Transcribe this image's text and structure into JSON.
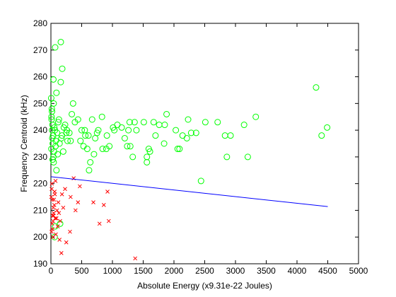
{
  "chart_data": {
    "type": "scatter",
    "xlabel": "Absolute Energy (x9.31e-22 Joules)",
    "ylabel": "Frequency Centroid (kHz)",
    "xlim": [
      0,
      5000
    ],
    "ylim": [
      190,
      280
    ],
    "xticks": [
      0,
      500,
      1000,
      1500,
      2000,
      2500,
      3000,
      3500,
      4000,
      4500,
      5000
    ],
    "yticks": [
      190,
      200,
      210,
      220,
      230,
      240,
      250,
      260,
      270,
      280
    ],
    "grid": false,
    "series": [
      {
        "color": "#00ff00",
        "marker": "o",
        "x": [
          69,
          161,
          184,
          4310,
          4490,
          4400,
          3330,
          3140,
          3200,
          2860,
          2830,
          2920,
          2710,
          2510,
          2440,
          2230,
          2210,
          2280,
          2360,
          2140,
          2060,
          2090,
          2030,
          1880,
          1850,
          1840,
          1760,
          1670,
          1700,
          1590,
          1560,
          1560,
          1610,
          1510,
          1360,
          1280,
          1390,
          1260,
          1290,
          1330,
          1240,
          1200,
          1150,
          1080,
          1010,
          1030,
          910,
          900,
          950,
          840,
          770,
          830,
          670,
          720,
          610,
          620,
          640,
          590,
          530,
          550,
          440,
          340,
          390,
          360,
          320,
          260,
          210,
          160,
          90,
          40,
          45,
          60,
          70,
          150,
          45,
          90,
          10,
          20,
          30,
          15,
          25,
          35,
          50,
          5,
          12,
          22,
          40,
          55,
          80,
          100,
          120,
          140,
          180,
          200,
          230,
          270,
          300,
          8,
          18,
          28,
          65,
          75,
          110,
          130,
          170,
          250,
          480,
          500,
          560,
          700,
          750
        ],
        "values": [
          271,
          273,
          263,
          256,
          241,
          238,
          245,
          242,
          230,
          230,
          238,
          238,
          243,
          243,
          221,
          244,
          237,
          239,
          239,
          238,
          233,
          233,
          240,
          246,
          242,
          235,
          242,
          243,
          238,
          233,
          230,
          228,
          232,
          243,
          243,
          243,
          240,
          240,
          234,
          230,
          234,
          237,
          241,
          242,
          241,
          240,
          238,
          233,
          234,
          233,
          240,
          245,
          244,
          237,
          238,
          225,
          228,
          233,
          234,
          240,
          244,
          246,
          243,
          250,
          236,
          240,
          241,
          258,
          254,
          259,
          250,
          200,
          204,
          205,
          228,
          225,
          245,
          240,
          235,
          248,
          242,
          238,
          232,
          252,
          244,
          237,
          230,
          241,
          236,
          239,
          243,
          235,
          238,
          232,
          242,
          236,
          239,
          233,
          247,
          229,
          240,
          234,
          231,
          244,
          237,
          239,
          236,
          240,
          238,
          231,
          239
        ]
      },
      {
        "color": "#ff0000",
        "marker": "x",
        "x": [
          1370,
          170,
          250,
          310,
          790,
          940,
          860,
          920,
          690,
          440,
          400,
          470,
          370,
          230,
          180,
          320,
          130,
          70,
          10,
          20,
          30,
          40,
          50,
          60,
          15,
          25,
          35,
          45,
          55,
          5,
          80,
          90,
          100,
          110,
          120,
          140,
          150,
          200,
          12,
          22,
          32,
          42,
          65,
          75
        ],
        "values": [
          192,
          194,
          198,
          202,
          205,
          206,
          212,
          217,
          213,
          213,
          210,
          219,
          222,
          218,
          216,
          215,
          209,
          207,
          202,
          205,
          208,
          211,
          214,
          217,
          220,
          203,
          206,
          209,
          212,
          215,
          201,
          207,
          210,
          204,
          213,
          199,
          206,
          211,
          218,
          214,
          200,
          208,
          216,
          221
        ]
      },
      {
        "color": "#0000ff",
        "marker": "line",
        "x": [
          0,
          4500
        ],
        "values": [
          222.6,
          211.4
        ]
      }
    ]
  }
}
